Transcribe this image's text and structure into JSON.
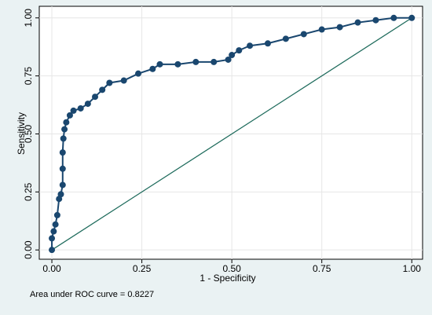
{
  "chart_data": {
    "type": "line",
    "x_label": "1 - Specificity",
    "y_label": "Sensitivity",
    "annotation": "Area under ROC curve = 0.8227",
    "xlim": [
      -0.035,
      1.03
    ],
    "ylim": [
      -0.04,
      1.05
    ],
    "xticks": [
      {
        "value": 0,
        "label": "0.00"
      },
      {
        "value": 0.25,
        "label": "0.25"
      },
      {
        "value": 0.5,
        "label": "0.50"
      },
      {
        "value": 0.75,
        "label": "0.75"
      },
      {
        "value": 1,
        "label": "1.00"
      }
    ],
    "yticks": [
      {
        "value": 0,
        "label": "0.00"
      },
      {
        "value": 0.25,
        "label": "0.25"
      },
      {
        "value": 0.5,
        "label": "0.50"
      },
      {
        "value": 0.75,
        "label": "0.75"
      },
      {
        "value": 1,
        "label": "1.00"
      }
    ],
    "grid": true,
    "series": [
      {
        "color": "#1a476f",
        "x": [
          0,
          0,
          0.005,
          0.01,
          0.015,
          0.02,
          0.025,
          0.03,
          0.03,
          0.03,
          0.032,
          0.035,
          0.04,
          0.05,
          0.06,
          0.08,
          0.1,
          0.12,
          0.14,
          0.16,
          0.2,
          0.24,
          0.28,
          0.3,
          0.35,
          0.4,
          0.45,
          0.49,
          0.5,
          0.52,
          0.55,
          0.6,
          0.65,
          0.7,
          0.75,
          0.8,
          0.85,
          0.9,
          0.95,
          1
        ],
        "values": [
          0,
          0.05,
          0.08,
          0.11,
          0.15,
          0.22,
          0.24,
          0.28,
          0.35,
          0.42,
          0.48,
          0.52,
          0.55,
          0.58,
          0.6,
          0.61,
          0.63,
          0.66,
          0.69,
          0.72,
          0.73,
          0.76,
          0.78,
          0.8,
          0.8,
          0.81,
          0.81,
          0.82,
          0.84,
          0.86,
          0.88,
          0.89,
          0.91,
          0.93,
          0.95,
          0.96,
          0.98,
          0.99,
          1,
          1
        ]
      }
    ],
    "reference_line": {
      "color": "#1e6b5c",
      "x": [
        0,
        1
      ],
      "values": [
        0,
        1
      ]
    }
  }
}
